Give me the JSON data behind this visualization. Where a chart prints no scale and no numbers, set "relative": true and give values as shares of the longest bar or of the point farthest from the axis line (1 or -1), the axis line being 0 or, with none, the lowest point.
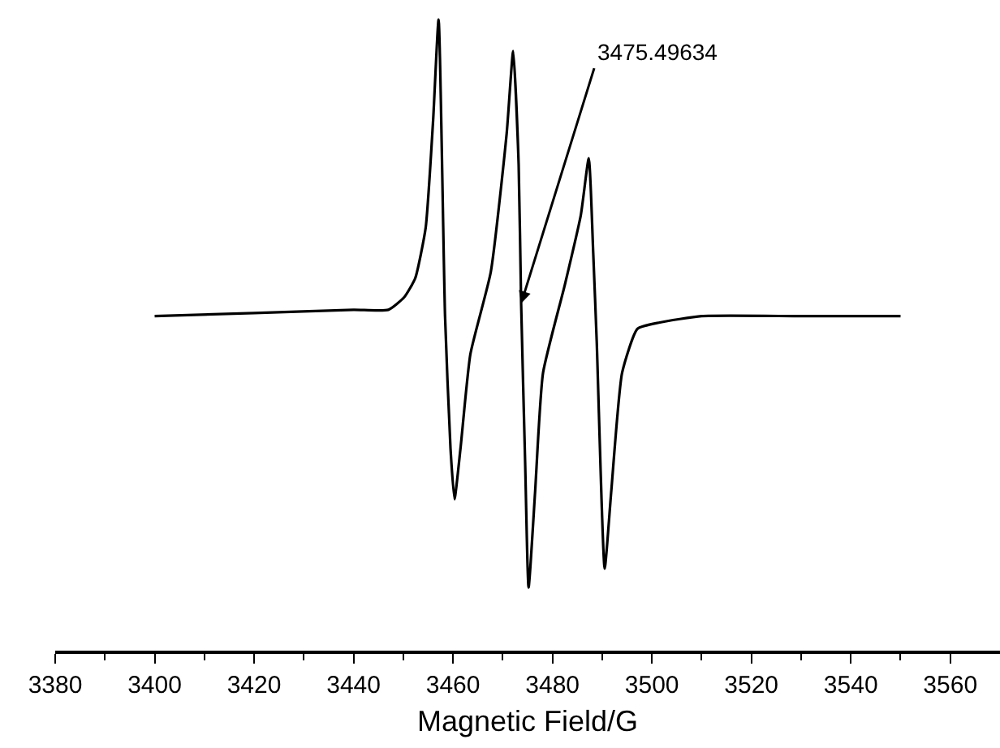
{
  "chart_data": {
    "type": "line",
    "xlabel": "Magnetic Field/G",
    "relative": true,
    "x": [
      3400,
      3420,
      3440,
      3447,
      3450.2,
      3452.4,
      3454.5,
      3456,
      3457.1,
      3458.4,
      3459.5,
      3460.3,
      3461.5,
      3463.5,
      3467.6,
      3470.8,
      3472.1,
      3473.2,
      3473.7,
      3474.5,
      3475.2,
      3476.5,
      3478.1,
      3482.5,
      3485.7,
      3487.3,
      3488.2,
      3488.9,
      3490.5,
      3491.8,
      3494,
      3497.1,
      3501.6,
      3510,
      3530,
      3550
    ],
    "series": [
      {
        "color": "#000000",
        "values": [
          0.53,
          0.535,
          0.54,
          0.54,
          0.56,
          0.59,
          0.67,
          0.84,
          1.0,
          0.53,
          0.32,
          0.24,
          0.32,
          0.47,
          0.6,
          0.82,
          0.95,
          0.77,
          0.55,
          0.3,
          0.1,
          0.25,
          0.44,
          0.58,
          0.69,
          0.78,
          0.63,
          0.49,
          0.13,
          0.25,
          0.44,
          0.51,
          0.52,
          0.53,
          0.53,
          0.53
        ]
      }
    ],
    "xlim": [
      3380,
      3570
    ],
    "xticks": [
      3380,
      {
        "value": 3390,
        "label": null
      },
      3400,
      {
        "value": 3410,
        "label": null
      },
      3420,
      {
        "value": 3430,
        "label": null
      },
      3440,
      {
        "value": 3450,
        "label": null
      },
      3460,
      {
        "value": 3470,
        "label": null
      },
      3480,
      {
        "value": 3490,
        "label": null
      },
      3500,
      {
        "value": 3510,
        "label": null
      },
      3520,
      {
        "value": 3530,
        "label": null
      },
      3540,
      {
        "value": 3550,
        "label": null
      },
      3560
    ],
    "annotations": [
      {
        "text": "3475.49634",
        "x": 3473.7,
        "y": 0.55
      }
    ],
    "marker": "none",
    "line_style": "solid"
  }
}
